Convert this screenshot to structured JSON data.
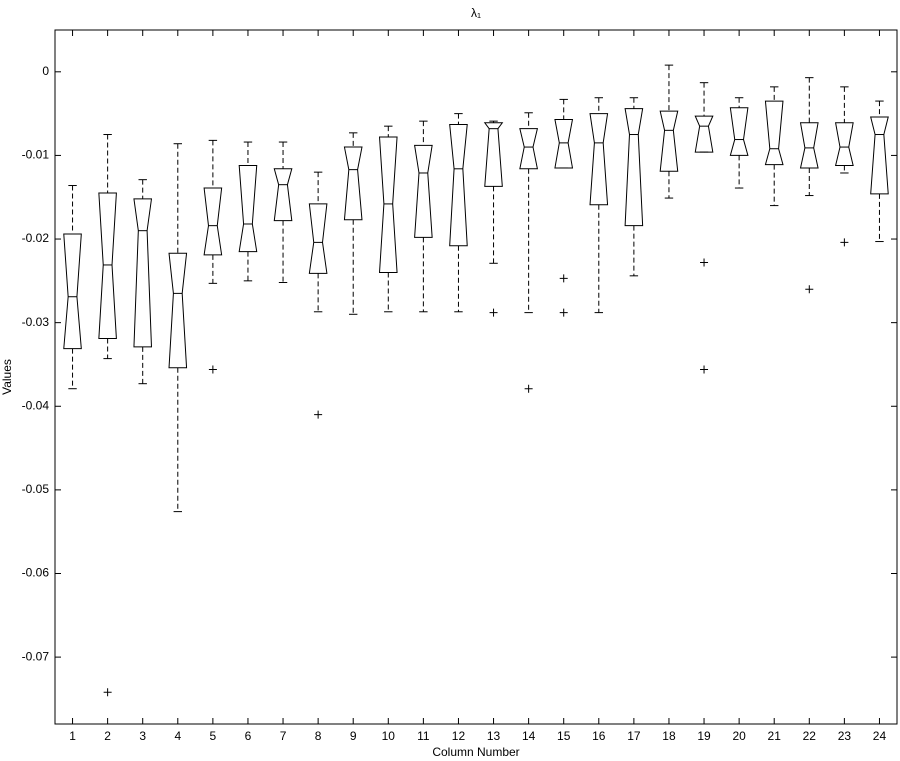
{
  "chart_data": {
    "type": "box",
    "title": "λ₁",
    "x_label": "Column Number",
    "y_label": "Values",
    "categories": [
      "1",
      "2",
      "3",
      "4",
      "5",
      "6",
      "7",
      "8",
      "9",
      "10",
      "11",
      "12",
      "13",
      "14",
      "15",
      "16",
      "17",
      "18",
      "19",
      "20",
      "21",
      "22",
      "23",
      "24"
    ],
    "boxes": [
      {
        "whisker_low": -0.0379,
        "q1": -0.0331,
        "median": -0.0269,
        "q3": -0.0194,
        "whisker_high": -0.0136,
        "outliers": []
      },
      {
        "whisker_low": -0.0343,
        "q1": -0.0319,
        "median": -0.0231,
        "q3": -0.0145,
        "whisker_high": -0.0075,
        "outliers": [
          -0.0742
        ]
      },
      {
        "whisker_low": -0.0373,
        "q1": -0.0329,
        "median": -0.019,
        "q3": -0.0152,
        "whisker_high": -0.0129,
        "outliers": []
      },
      {
        "whisker_low": -0.0526,
        "q1": -0.0354,
        "median": -0.0265,
        "q3": -0.0217,
        "whisker_high": -0.0086,
        "outliers": []
      },
      {
        "whisker_low": -0.0253,
        "q1": -0.0219,
        "median": -0.0184,
        "q3": -0.0139,
        "whisker_high": -0.0082,
        "outliers": [
          -0.0356
        ]
      },
      {
        "whisker_low": -0.025,
        "q1": -0.0215,
        "median": -0.0182,
        "q3": -0.0112,
        "whisker_high": -0.0084,
        "outliers": []
      },
      {
        "whisker_low": -0.0252,
        "q1": -0.0178,
        "median": -0.0135,
        "q3": -0.0116,
        "whisker_high": -0.0084,
        "outliers": []
      },
      {
        "whisker_low": -0.0287,
        "q1": -0.0241,
        "median": -0.0204,
        "q3": -0.0158,
        "whisker_high": -0.012,
        "outliers": [
          -0.041
        ]
      },
      {
        "whisker_low": -0.029,
        "q1": -0.0177,
        "median": -0.0117,
        "q3": -0.009,
        "whisker_high": -0.0073,
        "outliers": []
      },
      {
        "whisker_low": -0.0287,
        "q1": -0.024,
        "median": -0.0158,
        "q3": -0.0078,
        "whisker_high": -0.0065,
        "outliers": []
      },
      {
        "whisker_low": -0.0287,
        "q1": -0.0198,
        "median": -0.0121,
        "q3": -0.0088,
        "whisker_high": -0.0059,
        "outliers": []
      },
      {
        "whisker_low": -0.0287,
        "q1": -0.0208,
        "median": -0.0116,
        "q3": -0.0063,
        "whisker_high": -0.005,
        "outliers": []
      },
      {
        "whisker_low": -0.0229,
        "q1": -0.0137,
        "median": -0.0068,
        "q3": -0.0061,
        "whisker_high": -0.0059,
        "outliers": [
          -0.0288
        ]
      },
      {
        "whisker_low": -0.0288,
        "q1": -0.0116,
        "median": -0.009,
        "q3": -0.0068,
        "whisker_high": -0.0049,
        "outliers": [
          -0.0379
        ]
      },
      {
        "whisker_low": -0.0115,
        "q1": -0.0115,
        "median": -0.0085,
        "q3": -0.0057,
        "whisker_high": -0.0033,
        "outliers": [
          -0.0247,
          -0.0288
        ]
      },
      {
        "whisker_low": -0.0288,
        "q1": -0.0159,
        "median": -0.0085,
        "q3": -0.005,
        "whisker_high": -0.0031,
        "outliers": []
      },
      {
        "whisker_low": -0.0244,
        "q1": -0.0184,
        "median": -0.0075,
        "q3": -0.0044,
        "whisker_high": -0.0031,
        "outliers": []
      },
      {
        "whisker_low": -0.0151,
        "q1": -0.0119,
        "median": -0.007,
        "q3": -0.0047,
        "whisker_high": 0.0008,
        "outliers": []
      },
      {
        "whisker_low": -0.0096,
        "q1": -0.0096,
        "median": -0.0065,
        "q3": -0.0053,
        "whisker_high": -0.0013,
        "outliers": [
          -0.0228,
          -0.0356
        ]
      },
      {
        "whisker_low": -0.0139,
        "q1": -0.01,
        "median": -0.0081,
        "q3": -0.0043,
        "whisker_high": -0.0031,
        "outliers": []
      },
      {
        "whisker_low": -0.016,
        "q1": -0.0111,
        "median": -0.0092,
        "q3": -0.0035,
        "whisker_high": -0.0018,
        "outliers": []
      },
      {
        "whisker_low": -0.0148,
        "q1": -0.0115,
        "median": -0.0091,
        "q3": -0.0061,
        "whisker_high": -0.0007,
        "outliers": [
          -0.026
        ]
      },
      {
        "whisker_low": -0.0121,
        "q1": -0.0112,
        "median": -0.009,
        "q3": -0.0061,
        "whisker_high": -0.0018,
        "outliers": [
          -0.0204
        ]
      },
      {
        "whisker_low": -0.0203,
        "q1": -0.0146,
        "median": -0.0075,
        "q3": -0.0054,
        "whisker_high": -0.0035,
        "outliers": []
      }
    ],
    "color": "#000000",
    "ylim": [
      -0.078,
      0.005
    ],
    "yticks": [
      -0.07,
      -0.06,
      -0.05,
      -0.04,
      -0.03,
      -0.02,
      -0.01,
      0
    ]
  }
}
